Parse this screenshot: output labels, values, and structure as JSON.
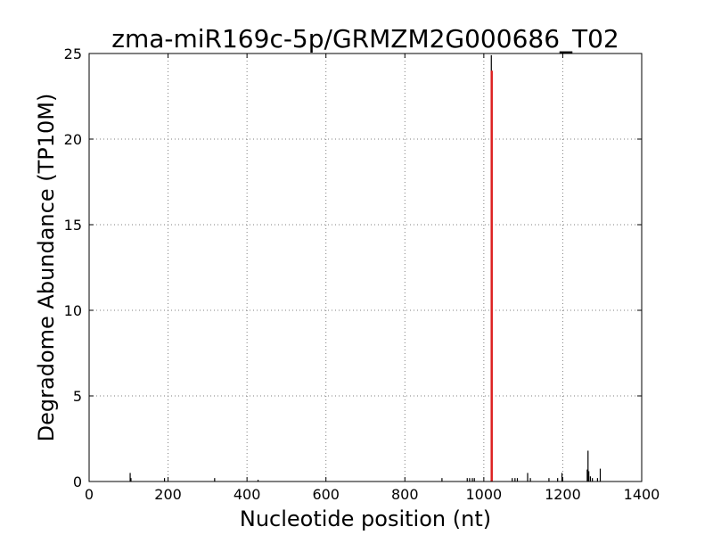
{
  "chart_data": {
    "type": "bar",
    "title": "zma-miR169c-5p/GRMZM2G000686_T02",
    "xlabel": "Nucleotide position (nt)",
    "ylabel": "Degradome Abundance (TP10M)",
    "xlim": [
      0,
      1400
    ],
    "ylim": [
      0,
      25
    ],
    "xticks": [
      0,
      200,
      400,
      600,
      800,
      1000,
      1200,
      1400
    ],
    "yticks": [
      0,
      5,
      10,
      15,
      20,
      25
    ],
    "grid": true,
    "colors": {
      "background": "#ffffff",
      "axes": "#000000",
      "grid": "#7f7f7f",
      "bars": "#000000",
      "highlight": "#dd2222"
    },
    "series": [
      {
        "values": [
          {
            "x": 104,
            "y": 0.5
          },
          {
            "x": 106,
            "y": 0.2
          },
          {
            "x": 191,
            "y": 0.2
          },
          {
            "x": 318,
            "y": 0.2
          },
          {
            "x": 428,
            "y": 0.1
          },
          {
            "x": 894,
            "y": 0.2
          },
          {
            "x": 958,
            "y": 0.2
          },
          {
            "x": 964,
            "y": 0.2
          },
          {
            "x": 971,
            "y": 0.2
          },
          {
            "x": 976,
            "y": 0.2
          },
          {
            "x": 1019,
            "y": 24.9
          },
          {
            "x": 1072,
            "y": 0.2
          },
          {
            "x": 1079,
            "y": 0.2
          },
          {
            "x": 1085,
            "y": 0.2
          },
          {
            "x": 1111,
            "y": 0.5
          },
          {
            "x": 1118,
            "y": 0.2
          },
          {
            "x": 1165,
            "y": 0.2
          },
          {
            "x": 1187,
            "y": 0.2
          },
          {
            "x": 1198,
            "y": 0.5
          },
          {
            "x": 1262,
            "y": 0.7
          },
          {
            "x": 1264,
            "y": 1.8
          },
          {
            "x": 1266,
            "y": 0.6
          },
          {
            "x": 1270,
            "y": 0.3
          },
          {
            "x": 1275,
            "y": 0.2
          },
          {
            "x": 1288,
            "y": 0.2
          },
          {
            "x": 1295,
            "y": 0.75
          }
        ]
      }
    ],
    "highlight": {
      "x": 1020,
      "y": 24
    }
  }
}
